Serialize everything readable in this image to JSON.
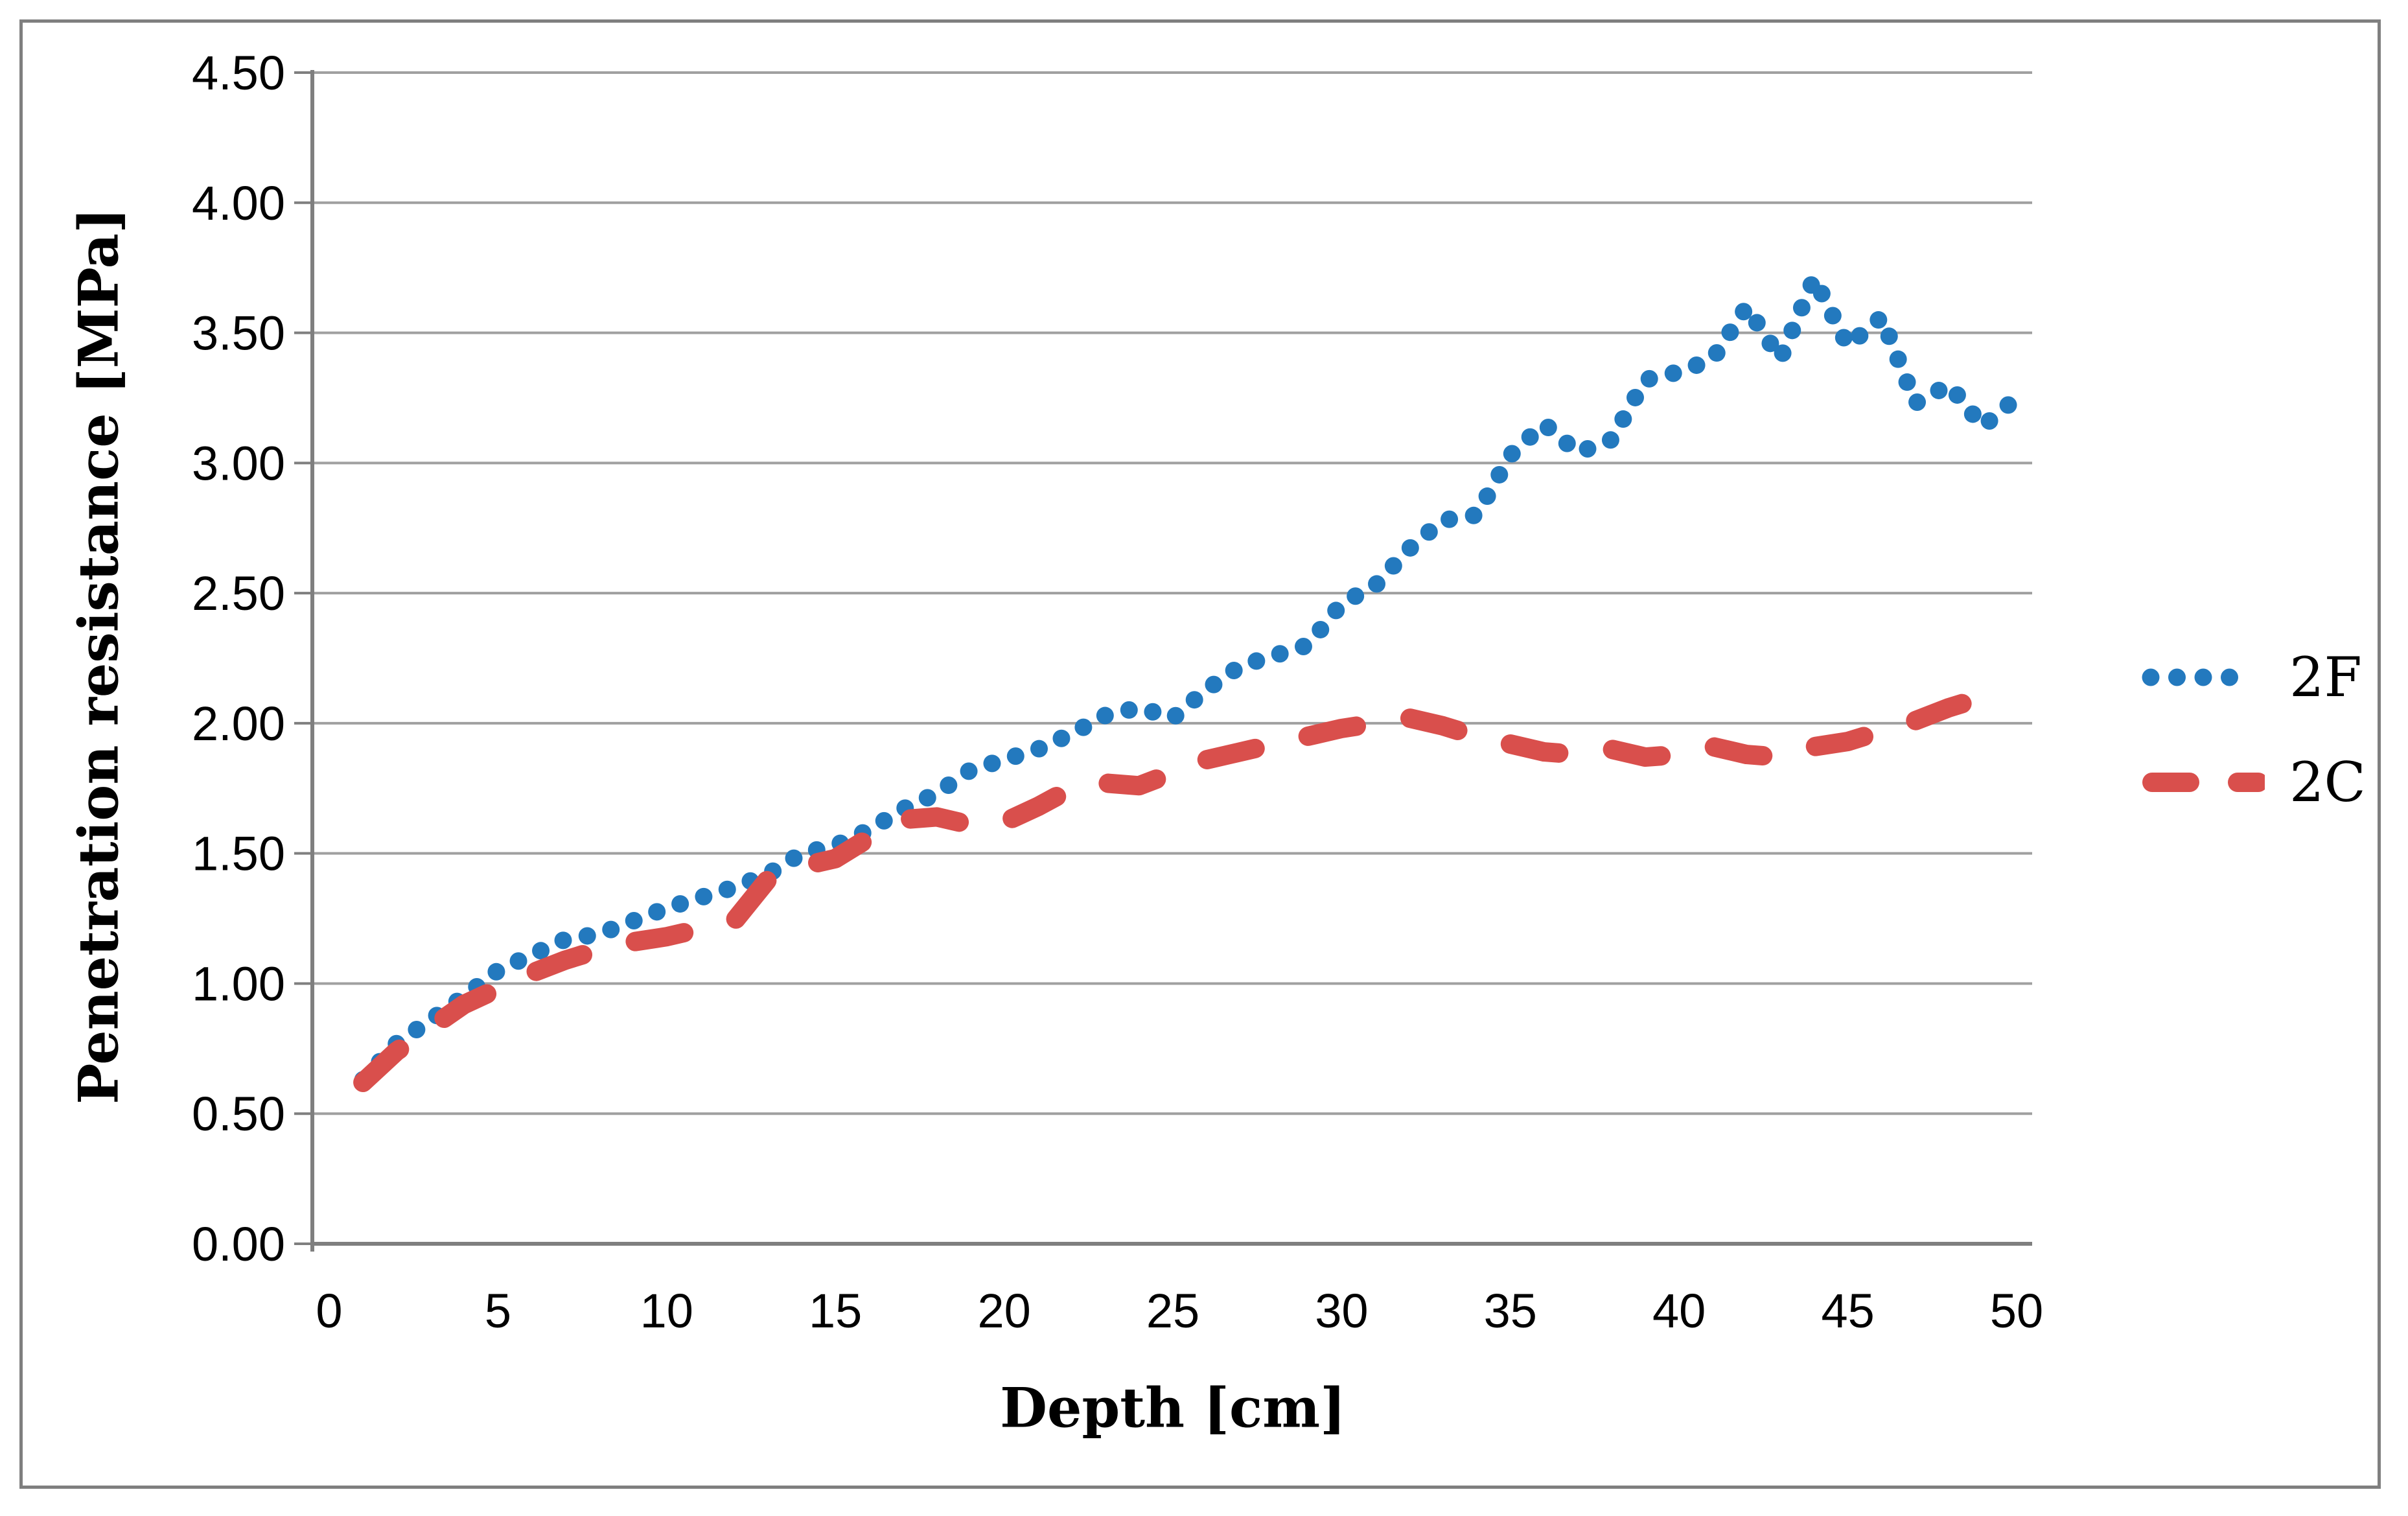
{
  "chart_data": {
    "type": "line",
    "title": "",
    "xlabel": "Depth [cm]",
    "ylabel": "Penetration resistance [MPa]",
    "xlim": [
      -0.5,
      50.45
    ],
    "ylim": [
      0,
      4.5
    ],
    "grid": "horizontal",
    "legend_position": "right",
    "x_tick_labels": [
      "0",
      "5",
      "10",
      "15",
      "20",
      "25",
      "30",
      "35",
      "40",
      "45",
      "50"
    ],
    "x_tick_values": [
      0,
      5,
      10,
      15,
      20,
      25,
      30,
      35,
      40,
      45,
      50
    ],
    "y_tick_labels": [
      "0.00",
      "0.50",
      "1.00",
      "1.50",
      "2.00",
      "2.50",
      "3.00",
      "3.50",
      "4.00",
      "4.50"
    ],
    "y_tick_values": [
      0,
      0.5,
      1.0,
      1.5,
      2.0,
      2.5,
      3.0,
      3.5,
      4.0,
      4.5
    ],
    "series": [
      {
        "name": "2F",
        "style": "dotted",
        "color": "#2379be",
        "x": [
          1,
          2,
          3,
          4,
          5,
          6,
          7,
          8,
          9,
          10,
          11,
          12,
          13,
          14,
          15,
          16,
          17,
          18,
          19,
          20,
          21,
          22,
          23,
          24,
          25,
          26,
          27,
          28,
          29,
          30,
          31,
          32,
          33,
          34,
          35,
          36,
          37,
          38,
          39,
          40,
          41,
          42,
          43,
          44,
          45,
          46,
          47,
          48,
          49,
          50
        ],
        "values": [
          0.63,
          0.77,
          0.86,
          0.95,
          1.05,
          1.11,
          1.17,
          1.19,
          1.24,
          1.29,
          1.33,
          1.37,
          1.42,
          1.5,
          1.53,
          1.59,
          1.67,
          1.73,
          1.82,
          1.86,
          1.9,
          1.96,
          2.03,
          2.06,
          2.02,
          2.13,
          2.22,
          2.26,
          2.3,
          2.46,
          2.53,
          2.67,
          2.78,
          2.8,
          3.03,
          3.15,
          3.04,
          3.09,
          3.32,
          3.35,
          3.4,
          3.6,
          3.4,
          3.71,
          3.45,
          3.56,
          3.23,
          3.3,
          3.14,
          3.25
        ]
      },
      {
        "name": "2C",
        "style": "dashed",
        "color": "#d94f4c",
        "x": [
          1,
          2,
          3,
          4,
          5,
          6,
          7,
          8,
          9,
          10,
          11,
          12,
          13,
          14,
          15,
          16,
          17,
          18,
          19,
          20,
          21,
          22,
          23,
          24,
          25,
          26,
          27,
          28,
          29,
          30,
          31,
          32,
          33,
          34,
          35,
          36,
          37,
          38,
          39,
          40,
          41,
          42,
          43,
          44,
          45,
          46,
          47,
          48,
          49
        ],
        "values": [
          0.62,
          0.74,
          0.83,
          0.92,
          0.98,
          1.04,
          1.09,
          1.13,
          1.16,
          1.18,
          1.21,
          1.24,
          1.4,
          1.45,
          1.48,
          1.56,
          1.63,
          1.64,
          1.61,
          1.62,
          1.68,
          1.75,
          1.77,
          1.76,
          1.81,
          1.86,
          1.89,
          1.92,
          1.95,
          1.98,
          2.0,
          2.02,
          1.99,
          1.95,
          1.92,
          1.89,
          1.88,
          1.9,
          1.87,
          1.88,
          1.91,
          1.88,
          1.87,
          1.91,
          1.93,
          1.97,
          2.01,
          2.06,
          2.1
        ]
      }
    ],
    "colors": {
      "gridline": "#a0a0a0",
      "axis": "#7f7f7f",
      "border": "#7f7f7f",
      "text": "#000000"
    }
  }
}
